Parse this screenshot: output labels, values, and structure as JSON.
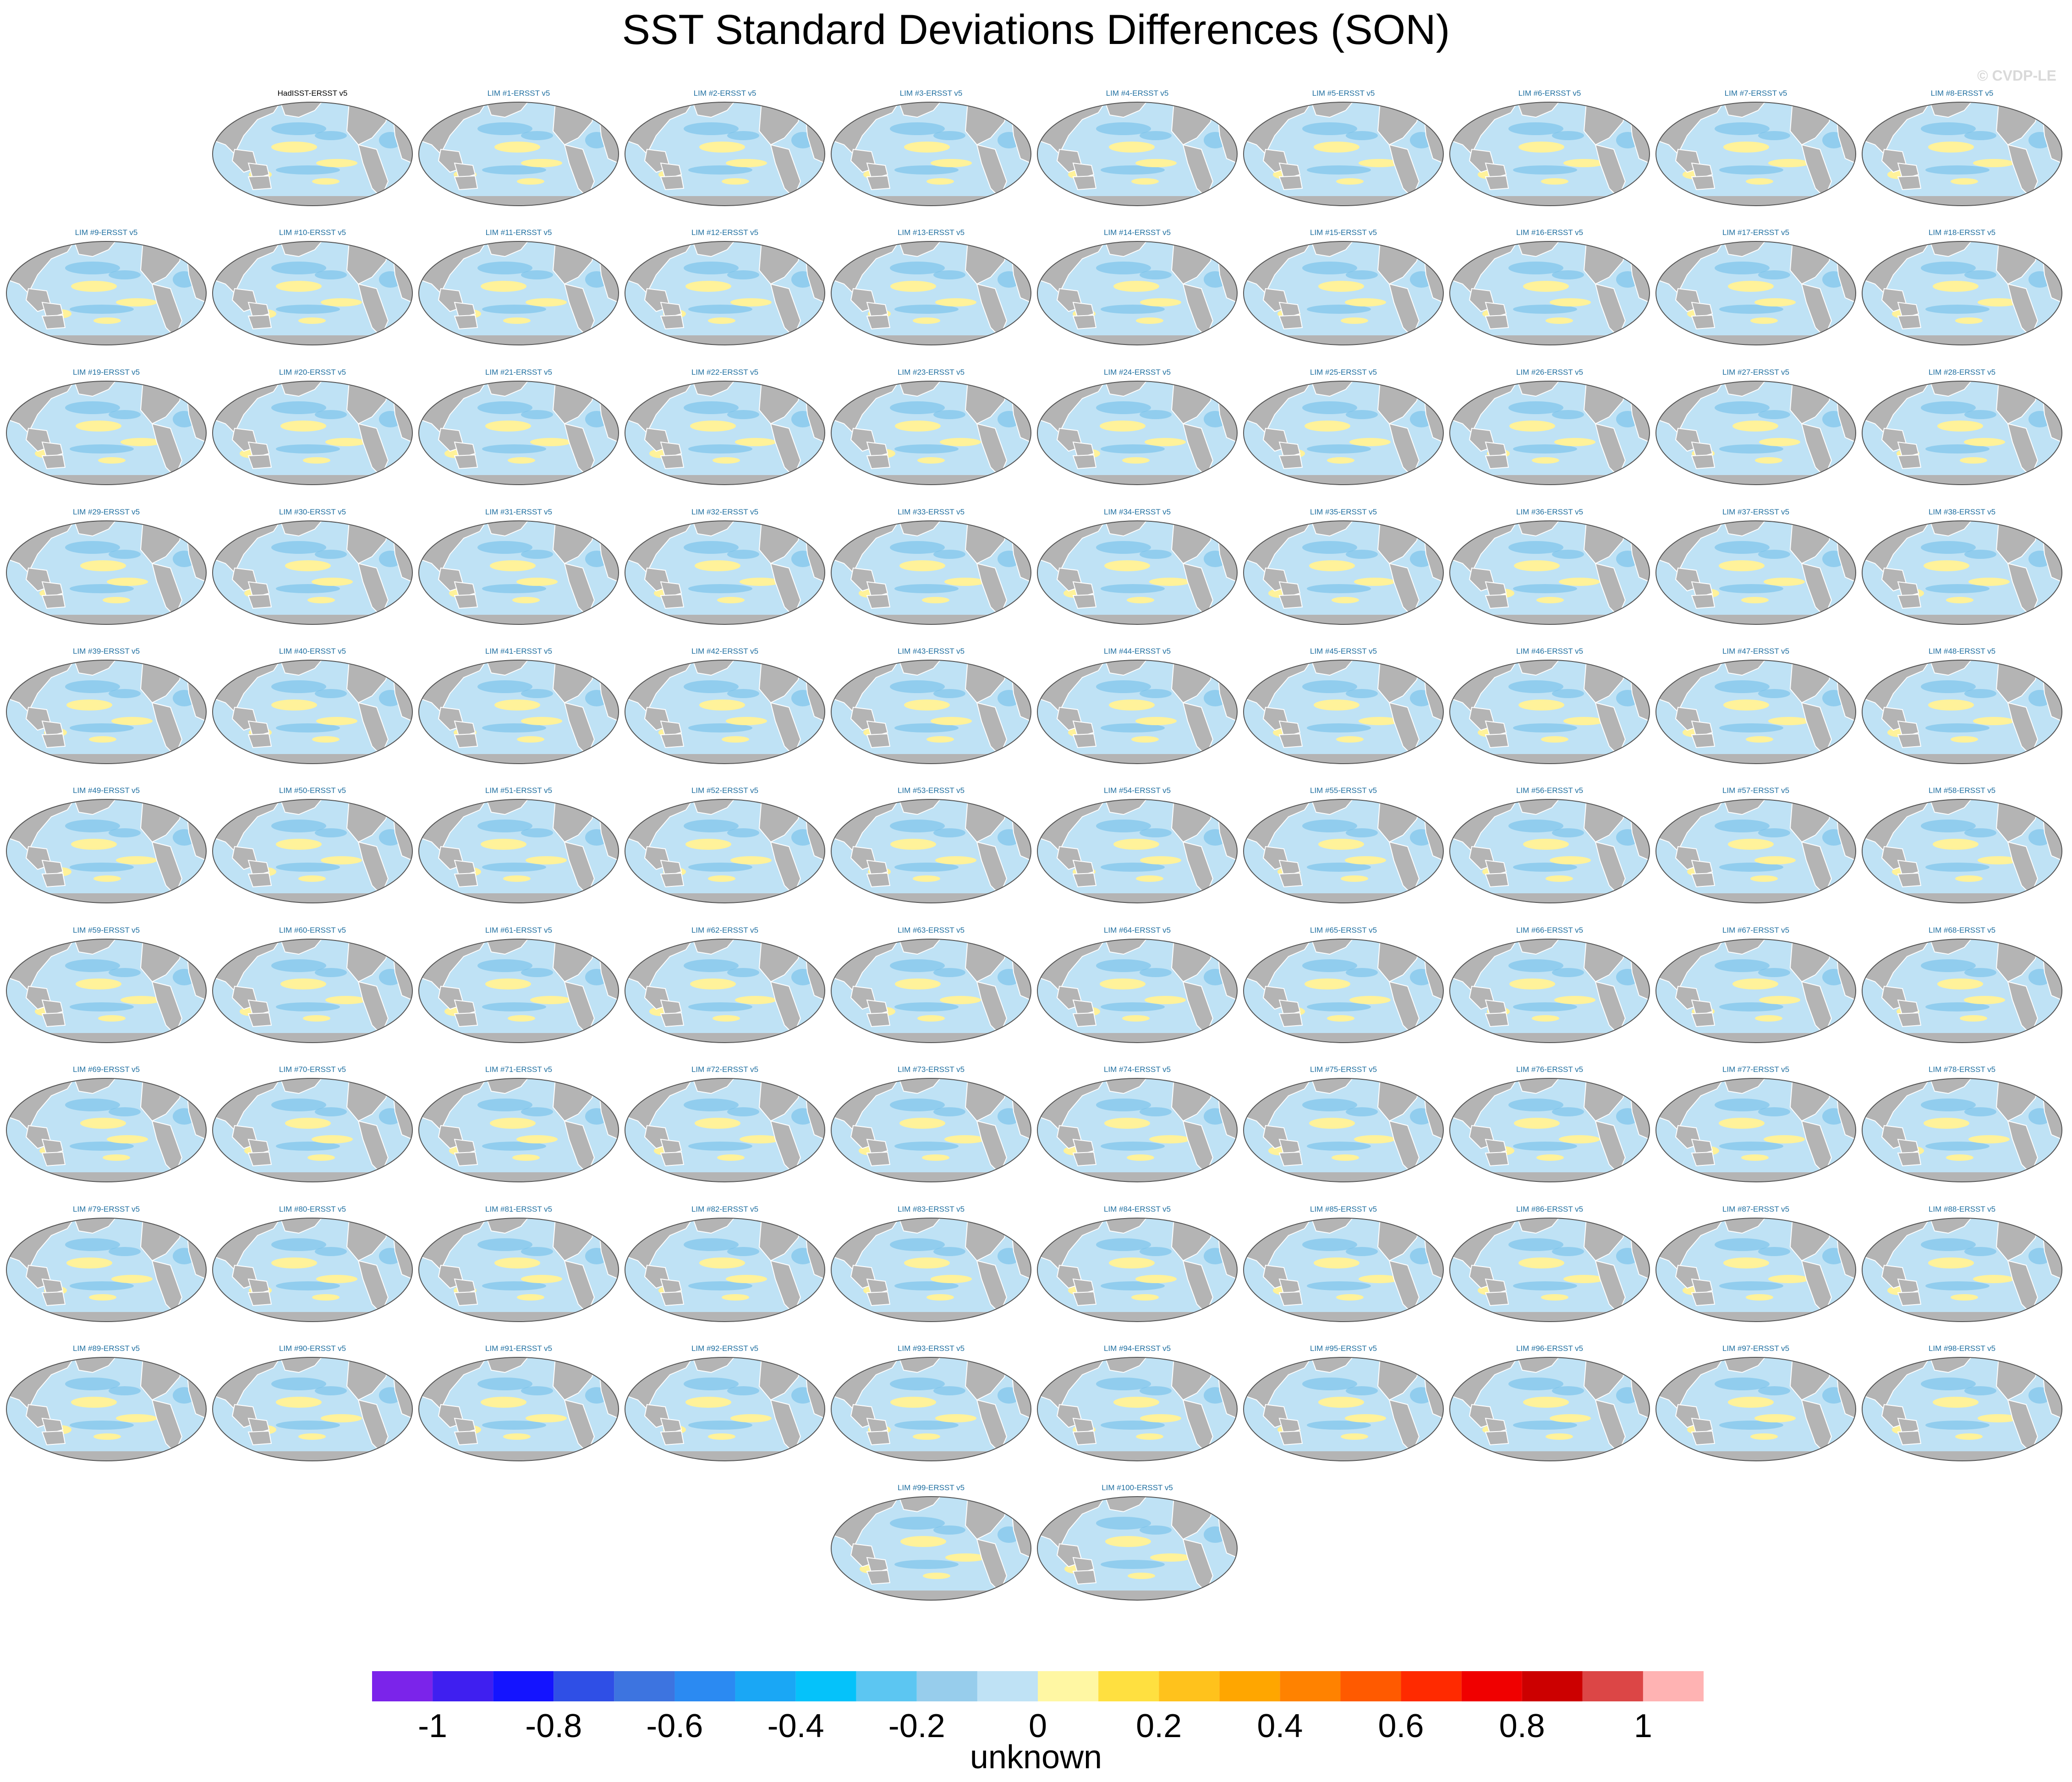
{
  "title": "SST Standard Deviations Differences (SON)",
  "watermark": "© CVDP-LE",
  "colorbar_label": "unknown",
  "colors": {
    "land": "#b4b4b4",
    "ocean_base": "#bfe2f5",
    "panel_title_model": "#1f6fa0",
    "panel_title_obs": "#000000",
    "watermark": "#d9d9d9"
  },
  "chart_data": {
    "type": "heatmap",
    "title": "SST Standard Deviations Differences (SON)",
    "description_units": "unknown",
    "colorbar": {
      "min": -1.1,
      "max": 1.1,
      "levels": [
        -1.1,
        -1.0,
        -0.9,
        -0.8,
        -0.7,
        -0.6,
        -0.5,
        -0.4,
        -0.3,
        -0.2,
        -0.1,
        0,
        0.1,
        0.2,
        0.3,
        0.4,
        0.5,
        0.6,
        0.7,
        0.8,
        0.9,
        1.0,
        1.1
      ],
      "colors": [
        "#7b24ea",
        "#3f1ff0",
        "#1414ff",
        "#2f4fe6",
        "#3d74e0",
        "#2b8af2",
        "#1aa7f5",
        "#05c2fa",
        "#5cc6f2",
        "#97cdec",
        "#bfe2f5",
        "#fff7a3",
        "#ffe040",
        "#ffc21c",
        "#ffa600",
        "#ff8200",
        "#ff5a00",
        "#ff2a00",
        "#f00000",
        "#cc0000",
        "#dc4646",
        "#ffb3b3"
      ],
      "tick_values": [
        -1,
        -0.8,
        -0.6,
        -0.4,
        -0.2,
        0,
        0.2,
        0.4,
        0.6,
        0.8,
        1
      ],
      "tick_labels": [
        "-1",
        "-0.8",
        "-0.6",
        "-0.4",
        "-0.2",
        "0",
        "0.2",
        "0.4",
        "0.6",
        "0.8",
        "1"
      ],
      "label": "unknown"
    },
    "panels": [
      "HadISST-ERSST v5",
      "LIM #1-ERSST v5",
      "LIM #2-ERSST v5",
      "LIM #3-ERSST v5",
      "LIM #4-ERSST v5",
      "LIM #5-ERSST v5",
      "LIM #6-ERSST v5",
      "LIM #7-ERSST v5",
      "LIM #8-ERSST v5",
      "LIM #9-ERSST v5",
      "LIM #10-ERSST v5",
      "LIM #11-ERSST v5",
      "LIM #12-ERSST v5",
      "LIM #13-ERSST v5",
      "LIM #14-ERSST v5",
      "LIM #15-ERSST v5",
      "LIM #16-ERSST v5",
      "LIM #17-ERSST v5",
      "LIM #18-ERSST v5",
      "LIM #19-ERSST v5",
      "LIM #20-ERSST v5",
      "LIM #21-ERSST v5",
      "LIM #22-ERSST v5",
      "LIM #23-ERSST v5",
      "LIM #24-ERSST v5",
      "LIM #25-ERSST v5",
      "LIM #26-ERSST v5",
      "LIM #27-ERSST v5",
      "LIM #28-ERSST v5",
      "LIM #29-ERSST v5",
      "LIM #30-ERSST v5",
      "LIM #31-ERSST v5",
      "LIM #32-ERSST v5",
      "LIM #33-ERSST v5",
      "LIM #34-ERSST v5",
      "LIM #35-ERSST v5",
      "LIM #36-ERSST v5",
      "LIM #37-ERSST v5",
      "LIM #38-ERSST v5",
      "LIM #39-ERSST v5",
      "LIM #40-ERSST v5",
      "LIM #41-ERSST v5",
      "LIM #42-ERSST v5",
      "LIM #43-ERSST v5",
      "LIM #44-ERSST v5",
      "LIM #45-ERSST v5",
      "LIM #46-ERSST v5",
      "LIM #47-ERSST v5",
      "LIM #48-ERSST v5",
      "LIM #49-ERSST v5",
      "LIM #50-ERSST v5",
      "LIM #51-ERSST v5",
      "LIM #52-ERSST v5",
      "LIM #53-ERSST v5",
      "LIM #54-ERSST v5",
      "LIM #55-ERSST v5",
      "LIM #56-ERSST v5",
      "LIM #57-ERSST v5",
      "LIM #58-ERSST v5",
      "LIM #59-ERSST v5",
      "LIM #60-ERSST v5",
      "LIM #61-ERSST v5",
      "LIM #62-ERSST v5",
      "LIM #63-ERSST v5",
      "LIM #64-ERSST v5",
      "LIM #65-ERSST v5",
      "LIM #66-ERSST v5",
      "LIM #67-ERSST v5",
      "LIM #68-ERSST v5",
      "LIM #69-ERSST v5",
      "LIM #70-ERSST v5",
      "LIM #71-ERSST v5",
      "LIM #72-ERSST v5",
      "LIM #73-ERSST v5",
      "LIM #74-ERSST v5",
      "LIM #75-ERSST v5",
      "LIM #76-ERSST v5",
      "LIM #77-ERSST v5",
      "LIM #78-ERSST v5",
      "LIM #79-ERSST v5",
      "LIM #80-ERSST v5",
      "LIM #81-ERSST v5",
      "LIM #82-ERSST v5",
      "LIM #83-ERSST v5",
      "LIM #84-ERSST v5",
      "LIM #85-ERSST v5",
      "LIM #86-ERSST v5",
      "LIM #87-ERSST v5",
      "LIM #88-ERSST v5",
      "LIM #89-ERSST v5",
      "LIM #90-ERSST v5",
      "LIM #91-ERSST v5",
      "LIM #92-ERSST v5",
      "LIM #93-ERSST v5",
      "LIM #94-ERSST v5",
      "LIM #95-ERSST v5",
      "LIM #96-ERSST v5",
      "LIM #97-ERSST v5",
      "LIM #98-ERSST v5",
      "LIM #99-ERSST v5",
      "LIM #100-ERSST v5"
    ]
  }
}
